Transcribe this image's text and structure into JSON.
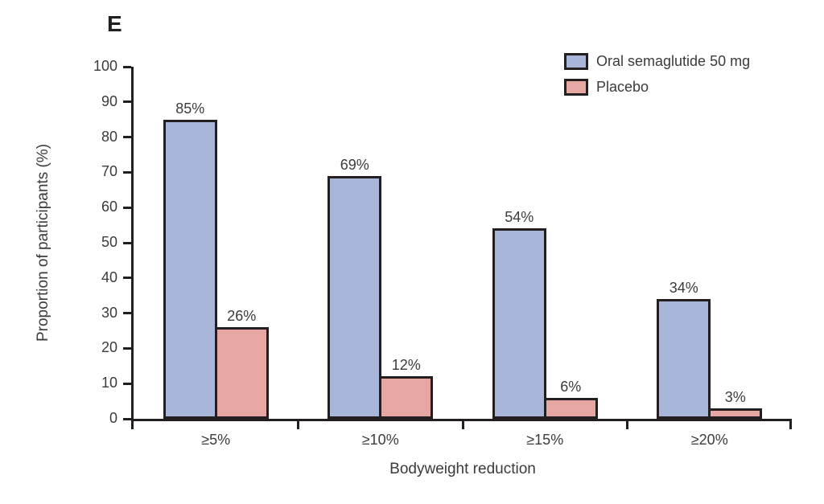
{
  "panel_label": "E",
  "colors": {
    "axis": "#231f20",
    "text": "#3d3a3c",
    "semaglutide_fill": "#a8b6da",
    "placebo_fill": "#e6a6a2",
    "background": "#ffffff"
  },
  "legend": {
    "position": "top-right",
    "items": [
      {
        "label": "Oral semaglutide 50 mg",
        "color": "#a8b6da"
      },
      {
        "label": "Placebo",
        "color": "#e6a6a2"
      }
    ]
  },
  "chart_data": {
    "type": "bar",
    "title": "",
    "categories": [
      "≥5%",
      "≥10%",
      "≥15%",
      "≥20%"
    ],
    "series": [
      {
        "name": "Oral semaglutide 50 mg",
        "color": "#a8b6da",
        "values": [
          85,
          69,
          54,
          34
        ],
        "data_labels": [
          "85%",
          "69%",
          "54%",
          "34%"
        ]
      },
      {
        "name": "Placebo",
        "color": "#e6a6a2",
        "values": [
          26,
          12,
          6,
          3
        ],
        "data_labels": [
          "26%",
          "12%",
          "6%",
          "3%"
        ]
      }
    ],
    "xlabel": "Bodyweight reduction",
    "ylabel": "Proportion of participants (%)",
    "ylim": [
      0,
      100
    ],
    "yticks": [
      0,
      10,
      20,
      30,
      40,
      50,
      60,
      70,
      80,
      90,
      100
    ],
    "grid": false,
    "legend_position": "top-right"
  }
}
